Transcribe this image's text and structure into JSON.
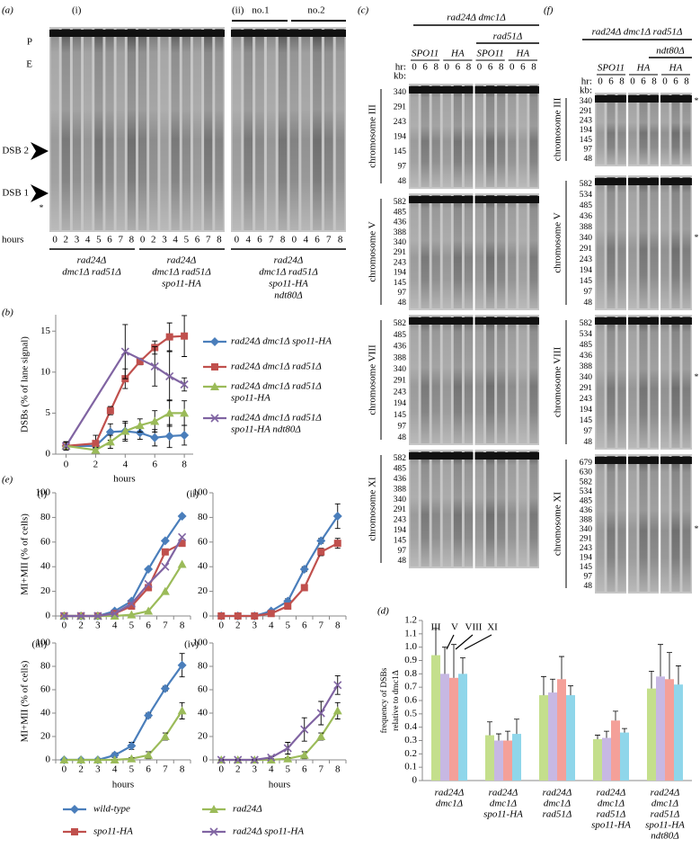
{
  "panel_a": {
    "label": "(a)",
    "part_i": "(i)",
    "part_ii": "(ii)",
    "replicates": [
      "no.1",
      "no.2"
    ],
    "band_labels": [
      "P",
      "E",
      "DSB 2",
      "DSB 1"
    ],
    "asterisk": "*",
    "hours_label": "hours",
    "lanes_i": [
      0,
      2,
      3,
      4,
      5,
      6,
      7,
      8,
      0,
      2,
      3,
      4,
      5,
      6,
      7,
      8
    ],
    "lanes_ii": [
      0,
      4,
      6,
      7,
      8,
      0,
      4,
      6,
      7,
      8
    ],
    "strains": [
      [
        "rad24Δ",
        "dmc1Δ rad51Δ"
      ],
      [
        "rad24Δ",
        "dmc1Δ rad51Δ",
        "spo11-HA"
      ],
      [
        "rad24Δ",
        "dmc1Δ rad51Δ",
        "spo11-HA",
        "ndt80Δ"
      ]
    ]
  },
  "panel_c": {
    "label": "(c)",
    "genotype": "rad24Δ dmc1Δ",
    "subgenotype": "rad51Δ",
    "alleles": [
      "SPO11",
      "HA",
      "SPO11",
      "HA"
    ],
    "hr_label": "hr:",
    "kb_label": "kb:",
    "lanes": [
      0,
      6,
      8
    ],
    "blots": [
      {
        "chromosome": "chromosome III",
        "kb": [
          340,
          291,
          243,
          194,
          145,
          97,
          48
        ]
      },
      {
        "chromosome": "chromosome V",
        "kb": [
          582,
          485,
          436,
          388,
          340,
          291,
          243,
          194,
          145,
          97,
          48
        ]
      },
      {
        "chromosome": "chromosome VIII",
        "kb": [
          582,
          485,
          436,
          388,
          340,
          291,
          243,
          194,
          145,
          97,
          48
        ]
      },
      {
        "chromosome": "chromosome XI",
        "kb": [
          582,
          485,
          436,
          388,
          340,
          291,
          243,
          194,
          145,
          97,
          48
        ]
      }
    ]
  },
  "panel_f": {
    "label": "(f)",
    "genotype": "rad24Δ dmc1Δ rad51Δ",
    "subgenotype": "ndt80Δ",
    "alleles": [
      "SPO11",
      "HA",
      "HA"
    ],
    "hr_label": "hr:",
    "kb_label": "kb:",
    "lanes": [
      0,
      6,
      8
    ],
    "asterisk": "*",
    "blots": [
      {
        "chromosome": "chromosome III",
        "kb": [
          340,
          291,
          243,
          194,
          145,
          97,
          48
        ]
      },
      {
        "chromosome": "chromosome V",
        "kb": [
          582,
          534,
          485,
          436,
          388,
          340,
          291,
          243,
          194,
          145,
          97,
          48
        ]
      },
      {
        "chromosome": "chromosome VIII",
        "kb": [
          582,
          534,
          485,
          436,
          388,
          340,
          291,
          243,
          194,
          145,
          97,
          48
        ]
      },
      {
        "chromosome": "chromosome XI",
        "kb": [
          679,
          630,
          582,
          534,
          485,
          436,
          388,
          340,
          291,
          243,
          194,
          145,
          97,
          48
        ]
      }
    ]
  },
  "chart_data": [
    {
      "type": "line",
      "panel": "(b)",
      "xlabel": "hours",
      "ylabel": "DSBs (% of lane signal)",
      "xlim": [
        -0.7,
        8.6
      ],
      "xticks": [
        0,
        2,
        4,
        6,
        8
      ],
      "ylim": [
        0,
        17
      ],
      "yticks": [
        0,
        5,
        10,
        15
      ],
      "series": [
        {
          "name": [
            "rad24Δ dmc1Δ spo11-HA"
          ],
          "color": "#4a7ebb",
          "marker": "diamond",
          "x": [
            0,
            2,
            3,
            4,
            5,
            6,
            7,
            8
          ],
          "values": [
            1.0,
            1.0,
            2.7,
            2.8,
            2.6,
            2.0,
            2.2,
            2.3
          ],
          "errors": [
            0.5,
            0.3,
            1.0,
            1.0,
            0.8,
            1.0,
            1.4,
            1.2
          ]
        },
        {
          "name": [
            "rad24Δ dmc1Δ rad51Δ"
          ],
          "color": "#c0504d",
          "marker": "square",
          "x": [
            0,
            2,
            3,
            4,
            5,
            6,
            7,
            8
          ],
          "values": [
            1.0,
            1.3,
            5.3,
            9.2,
            11.3,
            13.0,
            14.3,
            14.4
          ],
          "errors": [
            0.5,
            1.0,
            0.5,
            1.2,
            0.4,
            0.8,
            1.7,
            2.5
          ]
        },
        {
          "name": [
            "rad24Δ dmc1Δ rad51Δ",
            "spo11-HA"
          ],
          "color": "#9bbb59",
          "marker": "triangle",
          "x": [
            0,
            2,
            3,
            4,
            5,
            6,
            7,
            8
          ],
          "values": [
            1.0,
            0.5,
            1.5,
            2.8,
            3.5,
            4.0,
            5.0,
            5.0
          ],
          "errors": [
            0.5,
            0.3,
            0.8,
            1.2,
            0.8,
            1.3,
            1.6,
            1.5
          ]
        },
        {
          "name": [
            "rad24Δ dmc1Δ rad51Δ",
            "spo11-HA ndt80Δ"
          ],
          "color": "#8064a2",
          "marker": "x",
          "x": [
            0,
            4,
            6,
            7,
            8
          ],
          "values": [
            1.0,
            12.5,
            10.7,
            9.5,
            8.5
          ],
          "errors": [
            0.5,
            3.3,
            2.4,
            3.0,
            0.8
          ]
        }
      ]
    },
    {
      "type": "line",
      "panel": "(e)",
      "label": "(i)",
      "ylabel": "MI+MII (% of cells)",
      "categories": [
        0,
        2,
        3,
        4,
        5,
        6,
        7,
        8
      ],
      "ylim": [
        0,
        100
      ],
      "yticks": [
        0,
        20,
        40,
        60,
        80,
        100
      ],
      "series": [
        {
          "name": "wild-type",
          "color": "#4a7ebb",
          "marker": "diamond",
          "values": [
            0,
            0,
            0,
            4,
            12,
            38,
            61,
            81
          ]
        },
        {
          "name": "spo11-HA",
          "color": "#c0504d",
          "marker": "square",
          "values": [
            0,
            0,
            0,
            2,
            8,
            23,
            52,
            59
          ]
        },
        {
          "name": "rad24Δ",
          "color": "#9bbb59",
          "marker": "triangle",
          "values": [
            0,
            0,
            0,
            0,
            1,
            4,
            20,
            42
          ]
        },
        {
          "name": "rad24Δ spo11-HA",
          "color": "#8064a2",
          "marker": "x",
          "values": [
            0,
            0,
            0,
            2,
            10,
            26,
            40,
            64
          ]
        }
      ]
    },
    {
      "type": "line",
      "label": "(ii)",
      "categories": [
        0,
        2,
        3,
        4,
        5,
        6,
        7,
        8
      ],
      "ylim": [
        0,
        100
      ],
      "yticks": [
        0,
        20,
        40,
        60,
        80,
        100
      ],
      "series": [
        {
          "color": "#4a7ebb",
          "marker": "diamond",
          "values": [
            0,
            0,
            0,
            4,
            12,
            38,
            61,
            81
          ],
          "errors": [
            0,
            0,
            0,
            1,
            2,
            2,
            2,
            10
          ]
        },
        {
          "color": "#c0504d",
          "marker": "square",
          "values": [
            0,
            0,
            0,
            2,
            8,
            23,
            52,
            59
          ],
          "errors": [
            0,
            0,
            0,
            1,
            1,
            1,
            3,
            4
          ]
        }
      ]
    },
    {
      "type": "line",
      "label": "(iii)",
      "ylabel": "MI+MII (% of cells)",
      "xlabel": "hours",
      "categories": [
        0,
        2,
        3,
        4,
        5,
        6,
        7,
        8
      ],
      "ylim": [
        0,
        100
      ],
      "yticks": [
        0,
        20,
        40,
        60,
        80,
        100
      ],
      "series": [
        {
          "color": "#4a7ebb",
          "marker": "diamond",
          "values": [
            0,
            0,
            0,
            4,
            12,
            38,
            61,
            81
          ],
          "errors": [
            0,
            0,
            0,
            2,
            3,
            2,
            2,
            10
          ]
        },
        {
          "color": "#9bbb59",
          "marker": "triangle",
          "values": [
            0,
            0,
            0,
            0,
            1,
            4,
            20,
            42
          ],
          "errors": [
            0,
            0,
            0,
            0,
            1,
            3,
            3,
            7
          ]
        }
      ]
    },
    {
      "type": "line",
      "label": "(iv)",
      "xlabel": "hours",
      "categories": [
        0,
        2,
        3,
        4,
        5,
        6,
        7,
        8
      ],
      "ylim": [
        0,
        100
      ],
      "yticks": [
        0,
        20,
        40,
        60,
        80,
        100
      ],
      "series": [
        {
          "color": "#9bbb59",
          "marker": "triangle",
          "values": [
            0,
            0,
            0,
            0,
            1,
            4,
            20,
            42
          ],
          "errors": [
            0,
            0,
            0,
            0,
            1,
            3,
            3,
            7
          ]
        },
        {
          "color": "#8064a2",
          "marker": "x",
          "values": [
            0,
            0,
            0,
            2,
            10,
            26,
            40,
            64
          ],
          "errors": [
            0,
            0,
            0,
            1,
            5,
            10,
            10,
            8
          ]
        }
      ]
    },
    {
      "type": "bar",
      "panel": "(d)",
      "ylabel": [
        "frequency of DSBs",
        "relative to dmc1Δ"
      ],
      "ylim": [
        0,
        1.2
      ],
      "yticks": [
        0,
        0.1,
        0.2,
        0.3,
        0.4,
        0.5,
        0.6,
        0.7,
        0.8,
        0.9,
        {
          "value": 1,
          "label": "1.0"
        },
        1.1,
        1.2
      ],
      "categories": [
        [
          "rad24Δ",
          "dmc1Δ"
        ],
        [
          "rad24Δ",
          "dmc1Δ",
          "spo11-HA"
        ],
        [
          "rad24Δ",
          "dmc1Δ",
          "rad51Δ"
        ],
        [
          "rad24Δ",
          "dmc1Δ",
          "rad51Δ",
          "spo11-HA"
        ],
        [
          "rad24Δ",
          "dmc1Δ",
          "rad51Δ",
          "spo11-HA",
          "ndt80Δ"
        ]
      ],
      "series": [
        {
          "name": "III",
          "color": "#c4df8c",
          "values": [
            0.94,
            0.34,
            0.64,
            0.31,
            0.69
          ],
          "errors": [
            0.2,
            0.1,
            0.14,
            0.03,
            0.13
          ]
        },
        {
          "name": "V",
          "color": "#c7b8e3",
          "values": [
            0.8,
            0.3,
            0.66,
            0.32,
            0.78
          ],
          "errors": [
            0.2,
            0.05,
            0.1,
            0.05,
            0.24
          ]
        },
        {
          "name": "VIII",
          "color": "#f4a099",
          "values": [
            0.77,
            0.3,
            0.76,
            0.45,
            0.76
          ],
          "errors": [
            0.25,
            0.07,
            0.17,
            0.07,
            0.2
          ]
        },
        {
          "name": "XI",
          "color": "#8fd6ea",
          "values": [
            0.8,
            0.35,
            0.64,
            0.36,
            0.72
          ],
          "errors": [
            0.12,
            0.11,
            0.07,
            0.03,
            0.14
          ]
        }
      ]
    }
  ]
}
